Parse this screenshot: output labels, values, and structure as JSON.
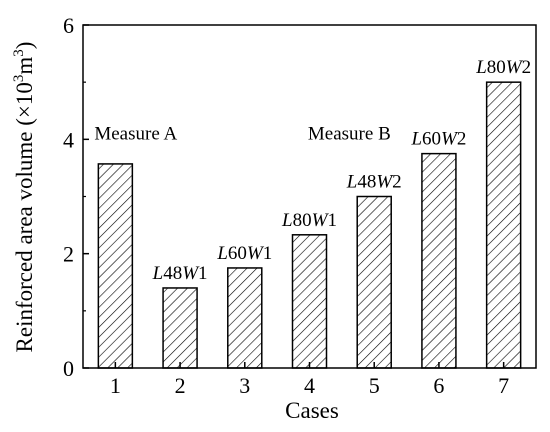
{
  "chart_data": {
    "type": "bar",
    "xlabel": "Cases",
    "ylabel_text": "Reinforced area volume (×10",
    "ylabel_sup1": "3",
    "ylabel_mid": "m",
    "ylabel_sup2": "3",
    "ylabel_end": ")",
    "categories": [
      "1",
      "2",
      "3",
      "4",
      "5",
      "6",
      "7"
    ],
    "values": [
      3.57,
      1.4,
      1.75,
      2.33,
      3.0,
      3.75,
      5.0
    ],
    "ylim": [
      0,
      6
    ],
    "yticks": [
      "0",
      "2",
      "4",
      "6"
    ],
    "bar_labels": [
      {
        "italic_l": "",
        "num1": "",
        "italic_w": "",
        "num2": ""
      },
      {
        "italic_l": "L",
        "num1": "48",
        "italic_w": "W",
        "num2": "1"
      },
      {
        "italic_l": "L",
        "num1": "60",
        "italic_w": "W",
        "num2": "1"
      },
      {
        "italic_l": "L",
        "num1": "80",
        "italic_w": "W",
        "num2": "1"
      },
      {
        "italic_l": "L",
        "num1": "48",
        "italic_w": "W",
        "num2": "2"
      },
      {
        "italic_l": "L",
        "num1": "60",
        "italic_w": "W",
        "num2": "2"
      },
      {
        "italic_l": "L",
        "num1": "80",
        "italic_w": "W",
        "num2": "2"
      }
    ],
    "annotations": [
      {
        "text": "Measure A",
        "category_index": 0,
        "value": 4.1
      },
      {
        "text": "Measure B",
        "category_index": 3.3,
        "value": 4.1
      }
    ],
    "fill_pattern": "diagonal-hatch",
    "colors": {
      "bar_stroke": "#000000",
      "hatch": "#000000",
      "background": "#ffffff"
    },
    "grid": false,
    "legend": "none"
  }
}
